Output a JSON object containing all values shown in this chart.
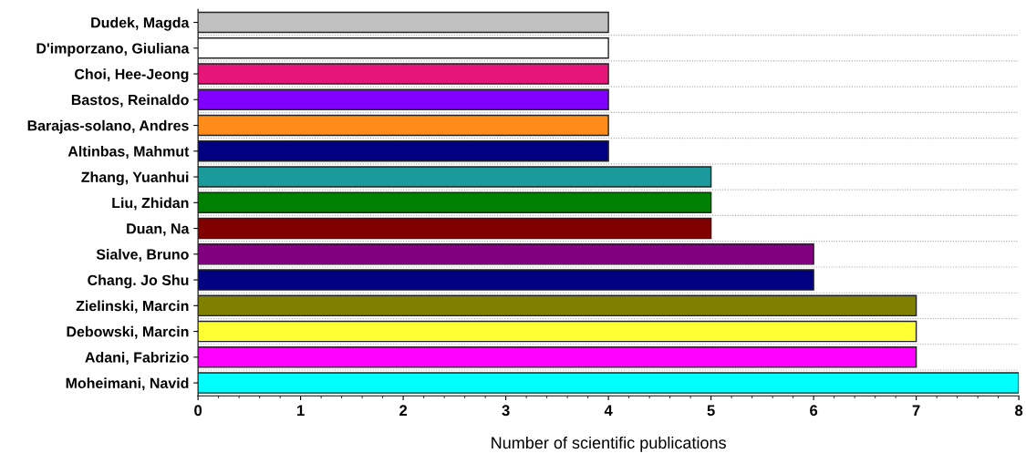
{
  "chart_data": {
    "type": "bar",
    "orientation": "horizontal",
    "xlabel": "Number of scientific publications",
    "categories": [
      "Dudek, Magda",
      "D'imporzano, Giuliana",
      "Choi, Hee-Jeong",
      "Bastos, Reinaldo",
      "Barajas-solano, Andres",
      "Altinbas, Mahmut",
      "Zhang, Yuanhui",
      "Liu, Zhidan",
      "Duan, Na",
      "Sialve, Bruno",
      "Chang. Jo Shu",
      "Zielinski, Marcin",
      "Debowski, Marcin",
      "Adani, Fabrizio",
      "Moheimani, Navid"
    ],
    "values": [
      4,
      4,
      4,
      4,
      4,
      4,
      5,
      5,
      5,
      6,
      6,
      7,
      7,
      7,
      8
    ],
    "colors": [
      "#c0c0c0",
      "#ffffff",
      "#e6157a",
      "#8000ff",
      "#ff8c1a",
      "#000080",
      "#1a9a9a",
      "#008000",
      "#800000",
      "#800080",
      "#000080",
      "#808000",
      "#ffff33",
      "#ff00ff",
      "#00ffff"
    ],
    "xlim": [
      0,
      8
    ],
    "xticks": [
      0,
      1,
      2,
      3,
      4,
      5,
      6,
      7,
      8
    ],
    "grid": "y"
  }
}
